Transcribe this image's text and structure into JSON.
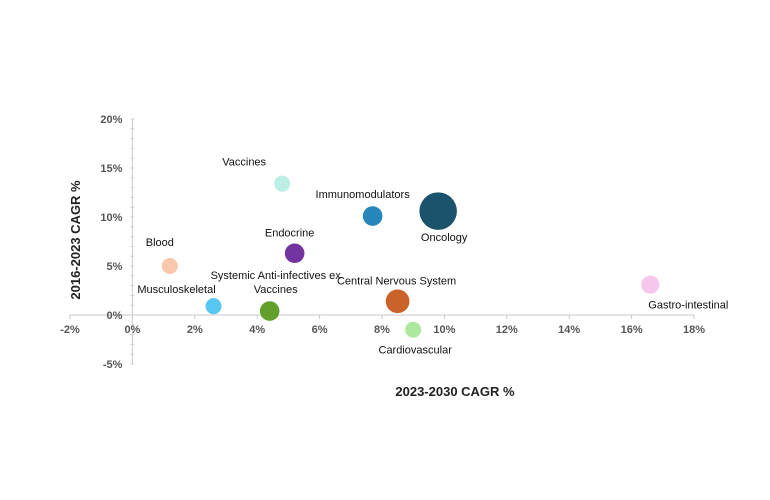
{
  "chart_data": {
    "type": "scatter",
    "subtype": "bubble",
    "xlabel": "2023-2030 CAGR %",
    "ylabel": "2016-2023 CAGR %",
    "xlim": [
      -2,
      18
    ],
    "ylim": [
      -5,
      20
    ],
    "xticks": [
      "-2%",
      "0%",
      "2%",
      "4%",
      "6%",
      "8%",
      "10%",
      "12%",
      "14%",
      "16%",
      "18%"
    ],
    "yticks": [
      "-5%",
      "0%",
      "5%",
      "10%",
      "15%",
      "20%"
    ],
    "grid": false,
    "legend": "none",
    "points": [
      {
        "name": "Vaccines",
        "x": 4.8,
        "y": 13.4,
        "size": 1.0,
        "color": "#b8ece6"
      },
      {
        "name": "Immunomodulators",
        "x": 7.7,
        "y": 10.1,
        "size": 1.5,
        "color": "#1a7fb8"
      },
      {
        "name": "Oncology",
        "x": 9.8,
        "y": 10.6,
        "size": 5.5,
        "color": "#0e4a63"
      },
      {
        "name": "Endocrine",
        "x": 5.2,
        "y": 6.3,
        "size": 1.5,
        "color": "#6a2a9a"
      },
      {
        "name": "Blood",
        "x": 1.2,
        "y": 5.0,
        "size": 1.0,
        "color": "#f8c4a8"
      },
      {
        "name": "Musculoskeletal",
        "x": 2.6,
        "y": 0.9,
        "size": 1.0,
        "color": "#4fc3f2"
      },
      {
        "name": "Systemic Anti-infectives ex Vaccines",
        "x": 4.4,
        "y": 0.4,
        "size": 1.5,
        "color": "#5a9a22"
      },
      {
        "name": "Central Nervous System",
        "x": 8.5,
        "y": 1.4,
        "size": 2.2,
        "color": "#c85a1e"
      },
      {
        "name": "Cardiovascular",
        "x": 9.0,
        "y": -1.5,
        "size": 1.0,
        "color": "#a8e89a"
      },
      {
        "name": "Gastro-intestinal",
        "x": 16.6,
        "y": 3.1,
        "size": 1.3,
        "color": "#f4c4ec"
      }
    ]
  }
}
